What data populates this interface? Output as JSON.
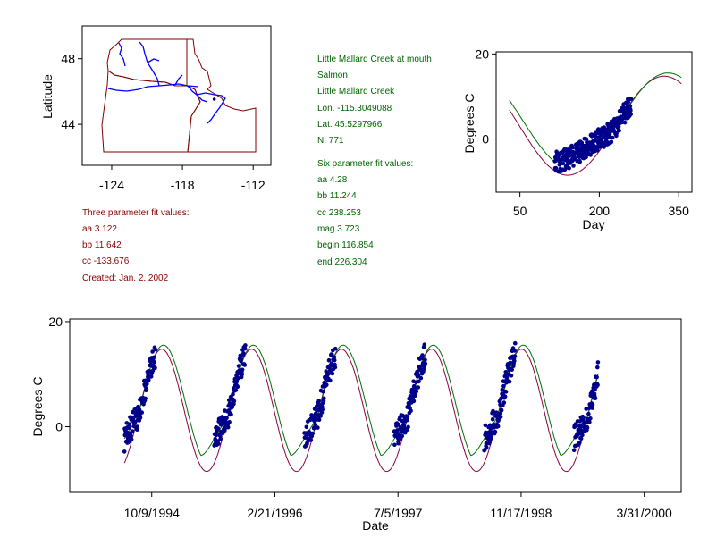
{
  "colors": {
    "observed": "#00008b",
    "three_param_fit": "#8b0045",
    "six_param_fit": "#007000",
    "state_border": "#800000",
    "river": "#0000ff",
    "info_green": "#006400",
    "info_red": "#8b0000"
  },
  "info": {
    "site_name": "Little Mallard Creek at mouth",
    "basin": "Salmon",
    "stream": "Little Mallard Creek",
    "lon": "Lon. -115.3049088",
    "lat": "Lat. 45.5297966",
    "n": "N: 771",
    "six_header": "Six parameter fit values:",
    "six_aa": "aa 4.28",
    "six_bb": "bb 11.244",
    "six_cc": "cc 238.253",
    "six_mag": "mag 3.723",
    "six_begin": "begin 116.854",
    "six_end": "end 226.304",
    "three_header": "Three parameter fit values:",
    "three_aa": "aa 3.122",
    "three_bb": "bb 11.642",
    "three_cc": "cc -133.676",
    "created": "Created:   Jan. 2, 2002"
  },
  "chart_data": [
    {
      "id": "map",
      "type": "scatter",
      "ylabel": "Latitude",
      "xlabel": "",
      "x_ticks": [
        "-124",
        "-118",
        "-112"
      ],
      "y_ticks": [
        "48",
        "44"
      ],
      "x_tick_values": [
        -124,
        -118,
        -112
      ],
      "y_tick_values": [
        48,
        44
      ],
      "xlim": [
        -126.5,
        -110.5
      ],
      "ylim": [
        41.5,
        50
      ],
      "site": {
        "lon": -115.3049088,
        "lat": 45.5297966
      }
    },
    {
      "id": "seasonal",
      "type": "line",
      "xlabel": "Day",
      "ylabel": "Degrees C",
      "x_ticks": [
        "50",
        "200",
        "350"
      ],
      "x_tick_values": [
        50,
        200,
        350
      ],
      "y_ticks": [
        "20",
        "0"
      ],
      "y_tick_values": [
        20,
        0
      ],
      "xlim": [
        5,
        375
      ],
      "ylim": [
        -12.5,
        20.5
      ],
      "series": [
        {
          "role": "three_param_fit",
          "aa": 3.122,
          "bb": 11.642,
          "cc": -133.676,
          "x_range": [
            30,
            355
          ]
        },
        {
          "role": "six_param_fit",
          "aa": 4.28,
          "bb": 11.244,
          "cc": 238.253,
          "mag": 3.723,
          "begin": 116.854,
          "end": 226.304,
          "x_range": [
            30,
            355
          ]
        },
        {
          "role": "observed",
          "day_range": [
            116,
            260
          ]
        }
      ]
    },
    {
      "id": "timeseries",
      "type": "line",
      "xlabel": "Date",
      "ylabel": "Degrees C",
      "x_ticks": [
        "10/9/1994",
        "2/21/1996",
        "7/5/1997",
        "11/17/1998",
        "3/31/2000"
      ],
      "y_ticks": [
        "20",
        "0"
      ],
      "y_tick_values": [
        20,
        0
      ],
      "xlim": [
        "1993-11-10",
        "2000-08-28"
      ],
      "ylim": [
        -12.5,
        20.5
      ],
      "fit_range": [
        "1994-06-20",
        "1999-09-26"
      ],
      "observed_seasons": [
        [
          "1994-06-20",
          "1994-10-25"
        ],
        [
          "1995-06-20",
          "1995-10-25"
        ],
        [
          "1996-06-20",
          "1996-10-25"
        ],
        [
          "1997-06-20",
          "1997-10-25"
        ],
        [
          "1998-06-20",
          "1998-10-25"
        ],
        [
          "1999-06-20",
          "1999-09-26"
        ]
      ]
    }
  ]
}
